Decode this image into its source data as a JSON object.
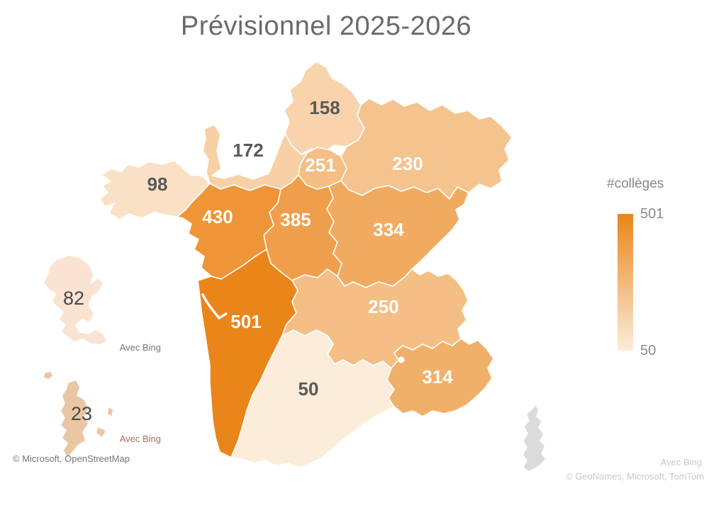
{
  "title": "Prévisionnel 2025-2026",
  "legend": {
    "title": "#collèges",
    "max_label": "501",
    "min_label": "50"
  },
  "chart_data": {
    "type": "choropleth",
    "title": "Prévisionnel 2025-2026",
    "legend_title": "#collèges",
    "scale": {
      "min": 50,
      "max": 501,
      "min_color": "#FCECDA",
      "max_color": "#EA8519"
    },
    "regions": [
      {
        "id": "hauts-de-france",
        "value": 158,
        "label_style": "dark"
      },
      {
        "id": "normandie",
        "value": 172,
        "label_style": "dark"
      },
      {
        "id": "ile-de-france",
        "value": 251,
        "label_style": "light"
      },
      {
        "id": "grand-est",
        "value": 230,
        "label_style": "light"
      },
      {
        "id": "bretagne",
        "value": 98,
        "label_style": "dark"
      },
      {
        "id": "pays-de-la-loire",
        "value": 430,
        "label_style": "light"
      },
      {
        "id": "centre-val-de-loire",
        "value": 385,
        "label_style": "light"
      },
      {
        "id": "bourgogne-franche-comte",
        "value": 334,
        "label_style": "light"
      },
      {
        "id": "nouvelle-aquitaine",
        "value": 501,
        "label_style": "light"
      },
      {
        "id": "auvergne-rhone-alpes",
        "value": 250,
        "label_style": "light"
      },
      {
        "id": "occitanie",
        "value": 50,
        "label_style": "dark"
      },
      {
        "id": "provence-alpes-cote-d-azur",
        "value": 314,
        "label_style": "light"
      }
    ],
    "no_data_regions": [
      {
        "id": "corse",
        "fill": "#DBDBDB"
      }
    ],
    "insets": [
      {
        "id": "martinique",
        "value": 82,
        "fill": "#FAE3D3"
      },
      {
        "id": "mayotte",
        "value": 23,
        "fill": "#EBC6A4"
      }
    ]
  },
  "attributions": {
    "inset_martinique": "Avec Bing",
    "inset_mayotte": "Avec Bing",
    "left_bottom": "© Microsoft, OpenStreetMap",
    "right_bing": "Avec Bing",
    "right_bottom": "© GeoNames, Microsoft, TomTom"
  }
}
